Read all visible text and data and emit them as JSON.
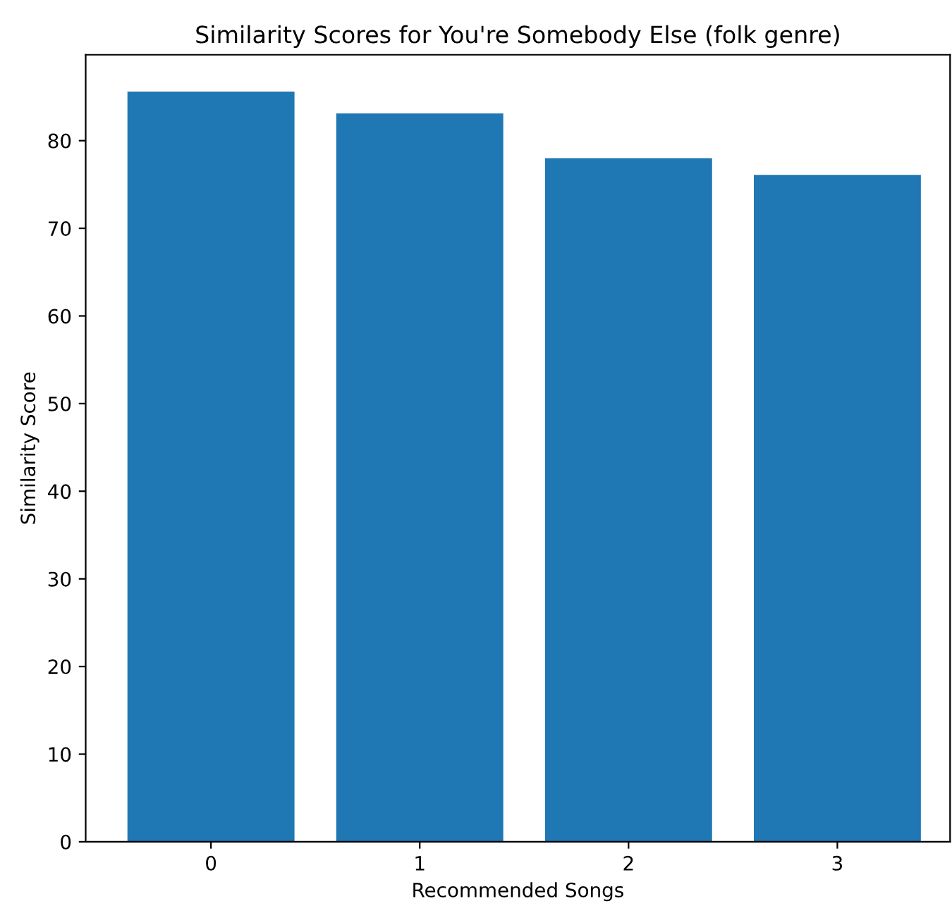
{
  "chart_data": {
    "type": "bar",
    "title": "Similarity Scores for You're Somebody Else (folk genre)",
    "xlabel": "Recommended Songs",
    "ylabel": "Similarity Score",
    "categories": [
      "0",
      "1",
      "2",
      "3"
    ],
    "values": [
      85.6,
      83.1,
      78.0,
      76.1
    ],
    "color": "#1f77b4",
    "ylim": [
      0,
      89.8
    ],
    "yticks": [
      0,
      10,
      20,
      30,
      40,
      50,
      60,
      70,
      80
    ],
    "grid": false,
    "legend": false
  }
}
